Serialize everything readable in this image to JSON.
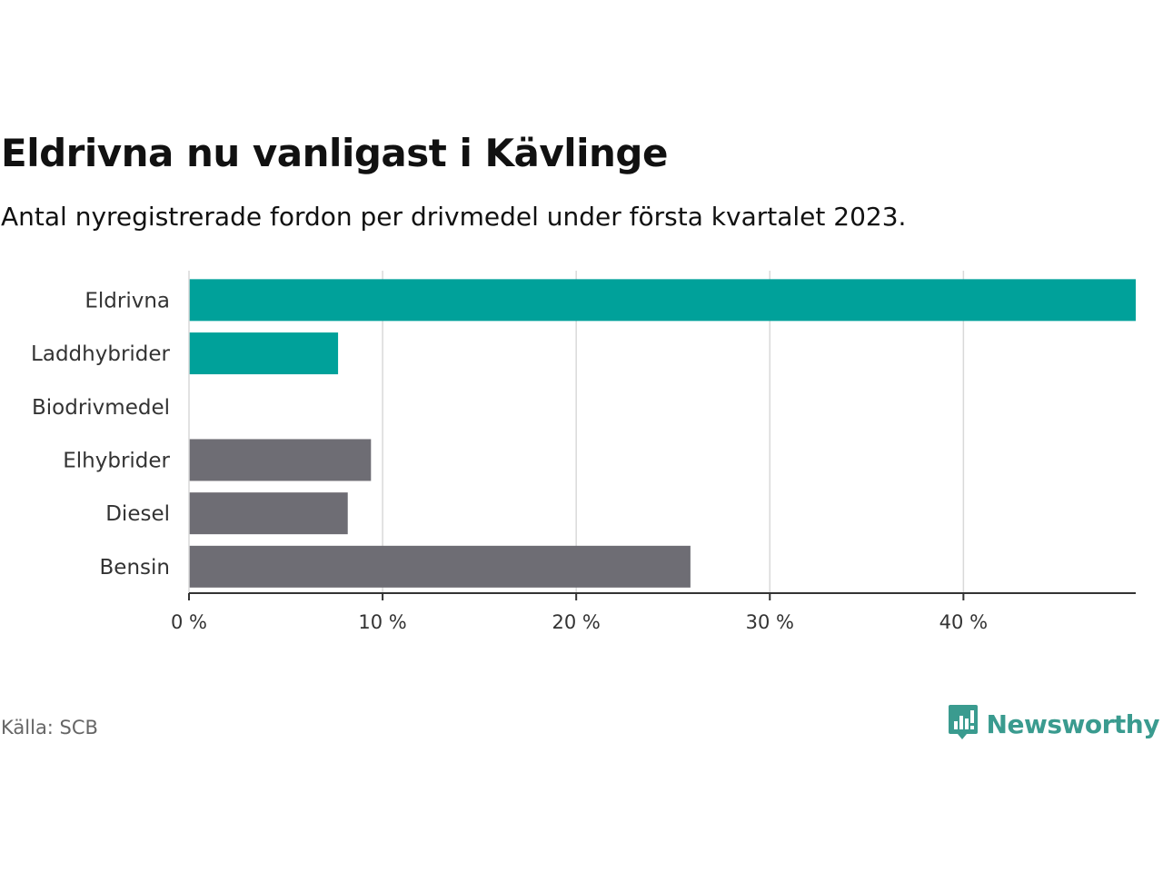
{
  "header": {
    "title": "Eldrivna nu vanligast i Kävlinge",
    "subtitle": "Antal nyregistrerade fordon per drivmedel under första kvartalet 2023."
  },
  "footer": {
    "source": "Källa: SCB",
    "brand": "Newsworthy",
    "brand_icon": "bar-chart-logo-icon"
  },
  "colors": {
    "highlight": "#00a19a",
    "muted": "#6e6d74",
    "grid": "#d9d9d9",
    "axis": "#333333",
    "brand": "#3a9b8f"
  },
  "chart_data": {
    "type": "bar",
    "orientation": "horizontal",
    "categories": [
      "Eldrivna",
      "Laddhybrider",
      "Biodrivmedel",
      "Elhybrider",
      "Diesel",
      "Bensin"
    ],
    "values": [
      48.9,
      7.7,
      0,
      9.4,
      8.2,
      25.9
    ],
    "highlight": [
      true,
      true,
      false,
      false,
      false,
      false
    ],
    "xlim": [
      0,
      48.9
    ],
    "xticks": [
      0,
      10,
      20,
      30,
      40
    ],
    "tick_labels": [
      "0 %",
      "10 %",
      "20 %",
      "30 %",
      "40 %"
    ],
    "grid": true
  }
}
